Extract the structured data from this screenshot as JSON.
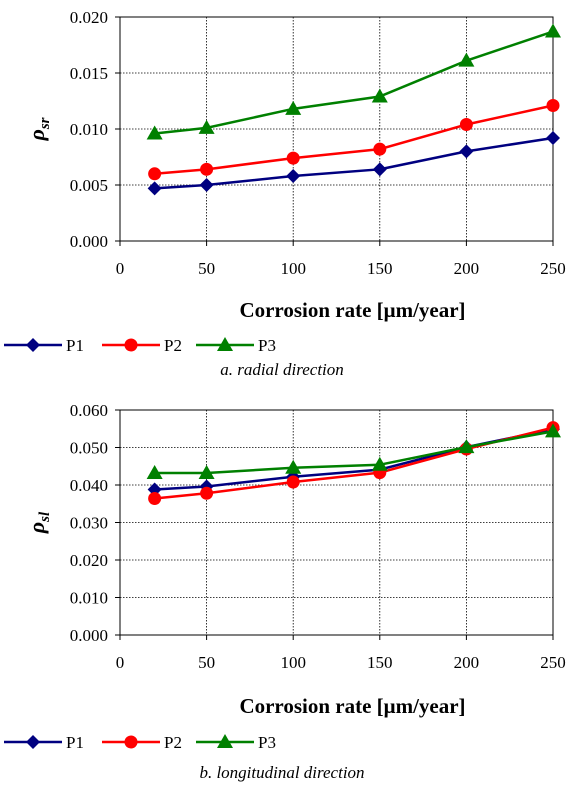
{
  "chart_data": [
    {
      "type": "line",
      "x": [
        20,
        50,
        100,
        150,
        200,
        250
      ],
      "xlim": [
        0,
        250
      ],
      "xticks": [
        "0",
        "50",
        "100",
        "150",
        "200",
        "250"
      ],
      "ylim": [
        0,
        0.02
      ],
      "yticks": [
        "0.000",
        "0.005",
        "0.010",
        "0.015",
        "0.020"
      ],
      "xlabel": "Corrosion rate [μm/year]",
      "ylabel": "ρ",
      "ylabel_sub": "sr",
      "grid": true,
      "legend_position": "bottom-left",
      "caption": "a. radial direction",
      "series": [
        {
          "name": "P1",
          "color": "#000080",
          "marker": "diamond",
          "values": [
            0.0047,
            0.005,
            0.0058,
            0.0064,
            0.008,
            0.0092
          ]
        },
        {
          "name": "P2",
          "color": "#ff0000",
          "marker": "circle",
          "values": [
            0.006,
            0.0064,
            0.0074,
            0.0082,
            0.0104,
            0.0121
          ]
        },
        {
          "name": "P3",
          "color": "#008000",
          "marker": "triangle",
          "values": [
            0.0096,
            0.0101,
            0.0118,
            0.0129,
            0.0161,
            0.0187
          ]
        }
      ]
    },
    {
      "type": "line",
      "x": [
        20,
        50,
        100,
        150,
        200,
        250
      ],
      "xlim": [
        0,
        250
      ],
      "xticks": [
        "0",
        "50",
        "100",
        "150",
        "200",
        "250"
      ],
      "ylim": [
        0,
        0.06
      ],
      "yticks": [
        "0.000",
        "0.010",
        "0.020",
        "0.030",
        "0.040",
        "0.050",
        "0.060"
      ],
      "xlabel": "Corrosion rate [μm/year]",
      "ylabel": "ρ",
      "ylabel_sub": "sl",
      "grid": true,
      "legend_position": "bottom-left",
      "caption": "b. longitudinal direction",
      "series": [
        {
          "name": "P1",
          "color": "#000080",
          "marker": "diamond",
          "values": [
            0.0388,
            0.0396,
            0.0422,
            0.0441,
            0.0501,
            0.0549
          ]
        },
        {
          "name": "P2",
          "color": "#ff0000",
          "marker": "circle",
          "values": [
            0.0364,
            0.0378,
            0.0408,
            0.0433,
            0.0496,
            0.0553
          ]
        },
        {
          "name": "P3",
          "color": "#008000",
          "marker": "triangle",
          "values": [
            0.0432,
            0.0432,
            0.0446,
            0.0454,
            0.0501,
            0.0543
          ]
        }
      ]
    }
  ]
}
